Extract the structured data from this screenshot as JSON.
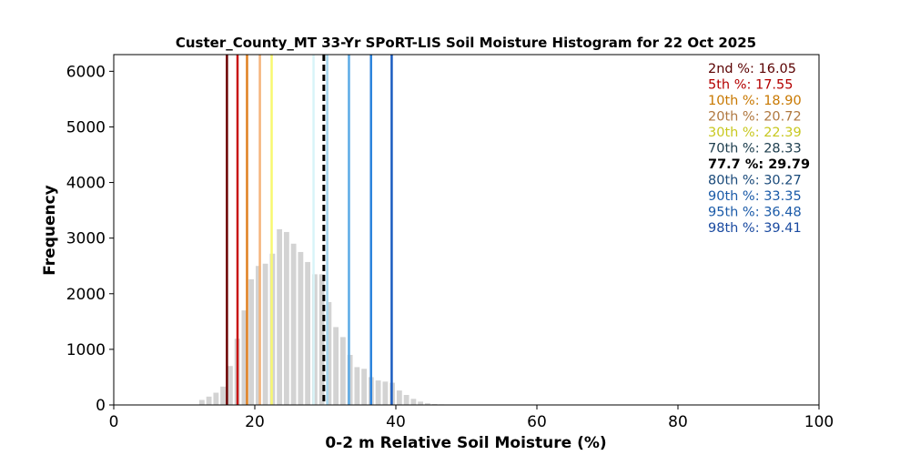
{
  "chart_data": {
    "type": "bar",
    "title": "Custer_County_MT 33-Yr SPoRT-LIS Soil Moisture Histogram for 22 Oct 2025",
    "xlabel": "0-2 m Relative Soil Moisture (%)",
    "ylabel": "Frequency",
    "xlim": [
      0,
      100
    ],
    "ylim": [
      0,
      6300
    ],
    "xticks": [
      "0",
      "20",
      "40",
      "60",
      "80",
      "100"
    ],
    "yticks": [
      "0",
      "1000",
      "2000",
      "3000",
      "4000",
      "5000",
      "6000"
    ],
    "bar_color": "#d3d3d3",
    "histogram": {
      "x": [
        12.5,
        13.5,
        14.5,
        15.5,
        16.5,
        17.5,
        18.5,
        19.5,
        20.5,
        21.5,
        22.5,
        23.5,
        24.5,
        25.5,
        26.5,
        27.5,
        28.5,
        29.5,
        30.5,
        31.5,
        32.5,
        33.5,
        34.5,
        35.5,
        36.5,
        37.5,
        38.5,
        39.5,
        40.5,
        41.5,
        42.5,
        43.5,
        44.5,
        45.5,
        46.5
      ],
      "values": [
        90,
        150,
        220,
        330,
        700,
        1190,
        1700,
        2260,
        2500,
        2540,
        2720,
        3160,
        3110,
        2900,
        2750,
        2570,
        2350,
        2350,
        1850,
        1400,
        1220,
        900,
        680,
        650,
        500,
        440,
        420,
        400,
        260,
        180,
        110,
        60,
        30,
        15,
        10
      ]
    },
    "percentile_lines": [
      {
        "label": "2nd %: 16.05",
        "value": 16.05,
        "color": "#6b0000",
        "style": "solid"
      },
      {
        "label": "5th %: 17.55",
        "value": 17.55,
        "color": "#c81414",
        "style": "solid"
      },
      {
        "label": "10th %: 18.90",
        "value": 18.9,
        "color": "#e08020",
        "style": "solid"
      },
      {
        "label": "20th %: 20.72",
        "value": 20.72,
        "color": "#f5b47a",
        "style": "solid"
      },
      {
        "label": "30th %: 22.39",
        "value": 22.39,
        "color": "#f8f870",
        "style": "solid"
      },
      {
        "label": "70th %: 28.33",
        "value": 28.33,
        "color": "#d8f4f8",
        "style": "solid"
      },
      {
        "label": "77.7 %: 29.79",
        "value": 29.79,
        "color": "#000000",
        "style": "dashed"
      },
      {
        "label": "80th %: 30.27",
        "value": 30.27,
        "color": "#a8d8f0",
        "style": "solid"
      },
      {
        "label": "90th %: 33.35",
        "value": 33.35,
        "color": "#5aaae6",
        "style": "solid"
      },
      {
        "label": "95th %: 36.48",
        "value": 36.48,
        "color": "#2a82dc",
        "style": "solid"
      },
      {
        "label": "98th %: 39.41",
        "value": 39.41,
        "color": "#1a5cc0",
        "style": "solid"
      }
    ],
    "label_colors": [
      "#5a0000",
      "#b40000",
      "#c87800",
      "#b07840",
      "#c8c820",
      "#204050",
      "#000000",
      "#1a4a7a",
      "#1a5aa8",
      "#1a5aa8",
      "#1a4aa0"
    ],
    "grid": false,
    "legend": "top-right"
  }
}
